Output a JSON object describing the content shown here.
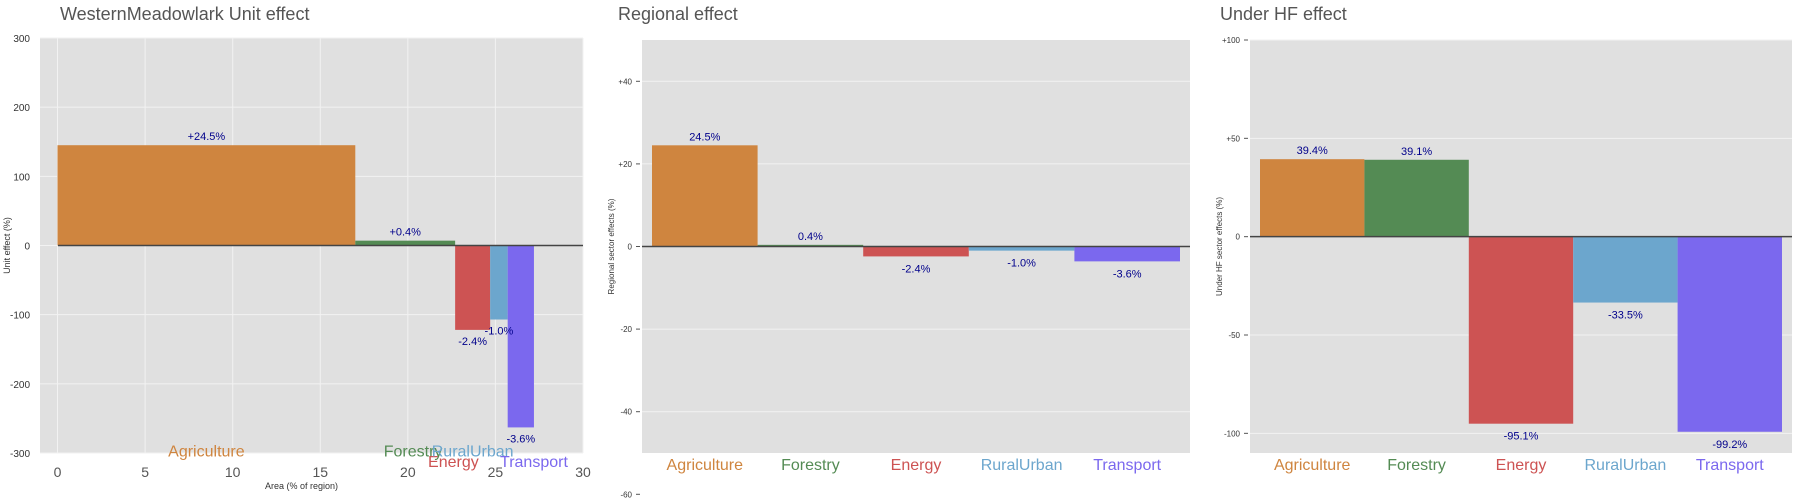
{
  "colors": {
    "Agriculture": "#cf853f",
    "Forestry": "#548b54",
    "Energy": "#cd5353",
    "RuralUrban": "#6ca6cd",
    "Transport": "#7b68ee",
    "plot_bg": "#e0e0e0",
    "label": "#00008b"
  },
  "chart_data": [
    {
      "type": "bar",
      "title": "WesternMeadowlark Unit effect",
      "xlabel": "Area (% of region)",
      "ylabel": "Unit effect (%)",
      "xlim": [
        -1,
        30
      ],
      "ylim": [
        -300,
        300
      ],
      "x_ticks": [
        "0",
        "5",
        "10",
        "15",
        "20",
        "25",
        "30"
      ],
      "x_tick_values": [
        0,
        5,
        10,
        15,
        20,
        25,
        30
      ],
      "y_ticks": [
        "300",
        "200",
        "100",
        "0",
        "-100",
        "-200",
        "-300"
      ],
      "y_tick_values": [
        300,
        200,
        100,
        0,
        -100,
        -200,
        -300
      ],
      "categories": [
        "Agriculture",
        "Forestry",
        "Energy",
        "RuralUrban",
        "Transport"
      ],
      "x_start": [
        0,
        17.0,
        22.7,
        24.7,
        25.7
      ],
      "x_end": [
        17.0,
        22.7,
        24.7,
        25.7,
        27.2
      ],
      "values": [
        145,
        7,
        -122,
        -107,
        -263
      ],
      "data_labels": [
        "+24.5%",
        "+0.4%",
        "-2.4%",
        "-1.0%",
        "-3.6%"
      ],
      "category_label_x": [
        8.5,
        20.3,
        22.6,
        23.7,
        27.2
      ],
      "category_label_y": [
        -305,
        -305,
        -320,
        -305,
        -320
      ]
    },
    {
      "type": "bar",
      "title": "Regional effect",
      "ylabel": "Regional sector effects (%)",
      "ylim": [
        -50,
        50
      ],
      "y_ticks": [
        "+40",
        "+20",
        "0",
        "-20",
        "-40",
        "-60"
      ],
      "y_tick_values": [
        40,
        20,
        0,
        -20,
        -40,
        -60
      ],
      "categories": [
        "Agriculture",
        "Forestry",
        "Energy",
        "RuralUrban",
        "Transport"
      ],
      "values": [
        24.5,
        0.4,
        -2.4,
        -1.0,
        -3.6
      ],
      "data_labels": [
        "24.5%",
        "0.4%",
        "-2.4%",
        "-1.0%",
        "-3.6%"
      ]
    },
    {
      "type": "bar",
      "title": "Under HF effect",
      "ylabel": "Under HF sector effects (%)",
      "ylim": [
        -110,
        100
      ],
      "y_ticks": [
        "+100",
        "+50",
        "0",
        "-50",
        "-100"
      ],
      "y_tick_values": [
        100,
        50,
        0,
        -50,
        -100
      ],
      "categories": [
        "Agriculture",
        "Forestry",
        "Energy",
        "RuralUrban",
        "Transport"
      ],
      "values": [
        39.4,
        39.1,
        -95.1,
        -33.5,
        -99.2
      ],
      "data_labels": [
        "39.4%",
        "39.1%",
        "-95.1%",
        "-33.5%",
        "-99.2%"
      ]
    }
  ]
}
